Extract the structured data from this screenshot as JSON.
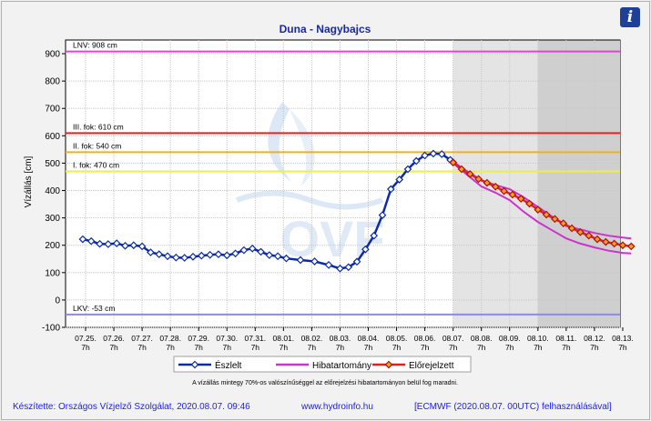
{
  "header": {
    "info_icon": "info-icon",
    "info_glyph": "i"
  },
  "chart_data": {
    "type": "line",
    "title": "Duna - Nagybajcs",
    "ylabel": "Vízállás [cm]",
    "xlabel": "",
    "ylim": [
      -100,
      950
    ],
    "yticks": [
      -100,
      0,
      100,
      200,
      300,
      400,
      500,
      600,
      700,
      800,
      900
    ],
    "grid": true,
    "legend_placement": "bottom",
    "x_ticks": [
      "07.25.",
      "07.26.",
      "07.27.",
      "07.28.",
      "07.29.",
      "07.30.",
      "07.31.",
      "08.01.",
      "08.02.",
      "08.03.",
      "08.04.",
      "08.05.",
      "08.06.",
      "08.07.",
      "08.08.",
      "08.09.",
      "08.10.",
      "08.11.",
      "08.12.",
      "08.13."
    ],
    "x_tick_sublabel": "7h",
    "reference_lines": [
      {
        "label": "LNV: 908 cm",
        "value": 908,
        "color": "#dd44dd"
      },
      {
        "label": "III. fok: 610 cm",
        "value": 610,
        "color": "#ee2222"
      },
      {
        "label": "II. fok: 540 cm",
        "value": 540,
        "color": "#f0b020"
      },
      {
        "label": "I. fok: 470 cm",
        "value": 470,
        "color": "#eeee44"
      },
      {
        "label": "LKV: -53 cm",
        "value": -53,
        "color": "#8888ff"
      }
    ],
    "shaded_regions": [
      {
        "from_day": 13,
        "to_day": 16,
        "color": "#e4e4e4"
      },
      {
        "from_day": 16,
        "to_day": 19.3,
        "color": "#cfcfcf"
      }
    ],
    "watermark": "OVF",
    "series": [
      {
        "name": "Észlelt",
        "color": "#0a2aa8",
        "points": [
          [
            -0.1,
            222
          ],
          [
            0.2,
            215
          ],
          [
            0.5,
            205
          ],
          [
            0.8,
            204
          ],
          [
            1.1,
            207
          ],
          [
            1.4,
            198
          ],
          [
            1.7,
            200
          ],
          [
            2.0,
            196
          ],
          [
            2.3,
            174
          ],
          [
            2.6,
            167
          ],
          [
            2.9,
            160
          ],
          [
            3.2,
            155
          ],
          [
            3.5,
            154
          ],
          [
            3.8,
            158
          ],
          [
            4.1,
            162
          ],
          [
            4.4,
            165
          ],
          [
            4.7,
            167
          ],
          [
            5.0,
            163
          ],
          [
            5.3,
            170
          ],
          [
            5.6,
            182
          ],
          [
            5.9,
            188
          ],
          [
            6.2,
            176
          ],
          [
            6.5,
            164
          ],
          [
            6.8,
            160
          ],
          [
            7.1,
            152
          ],
          [
            7.6,
            146
          ],
          [
            8.1,
            141
          ],
          [
            8.6,
            128
          ],
          [
            9.0,
            115
          ],
          [
            9.3,
            120
          ],
          [
            9.6,
            140
          ],
          [
            9.9,
            185
          ],
          [
            10.2,
            235
          ],
          [
            10.5,
            310
          ],
          [
            10.8,
            405
          ],
          [
            11.1,
            440
          ],
          [
            11.4,
            478
          ],
          [
            11.7,
            508
          ],
          [
            12.0,
            528
          ],
          [
            12.3,
            535
          ],
          [
            12.6,
            533
          ],
          [
            12.9,
            512
          ],
          [
            13.0,
            503
          ]
        ]
      },
      {
        "name": "Hibatartomány",
        "color": "#cc33cc",
        "upper": [
          [
            13.0,
            505
          ],
          [
            13.5,
            470
          ],
          [
            14.0,
            438
          ],
          [
            14.5,
            420
          ],
          [
            15.0,
            405
          ],
          [
            15.5,
            375
          ],
          [
            16.0,
            340
          ],
          [
            16.5,
            305
          ],
          [
            17.0,
            270
          ],
          [
            17.5,
            258
          ],
          [
            18.0,
            245
          ],
          [
            18.5,
            235
          ],
          [
            19.0,
            228
          ],
          [
            19.3,
            225
          ]
        ],
        "lower": [
          [
            13.0,
            500
          ],
          [
            13.5,
            457
          ],
          [
            14.0,
            415
          ],
          [
            14.5,
            392
          ],
          [
            15.0,
            365
          ],
          [
            15.5,
            322
          ],
          [
            16.0,
            285
          ],
          [
            16.5,
            255
          ],
          [
            17.0,
            225
          ],
          [
            17.5,
            206
          ],
          [
            18.0,
            192
          ],
          [
            18.5,
            180
          ],
          [
            19.0,
            172
          ],
          [
            19.3,
            170
          ]
        ]
      },
      {
        "name": "Előrejelzett",
        "color": "#e02020",
        "points": [
          [
            13.0,
            502
          ],
          [
            13.3,
            478
          ],
          [
            13.6,
            460
          ],
          [
            13.9,
            442
          ],
          [
            14.2,
            428
          ],
          [
            14.5,
            414
          ],
          [
            14.8,
            398
          ],
          [
            15.1,
            385
          ],
          [
            15.4,
            370
          ],
          [
            15.7,
            352
          ],
          [
            16.0,
            330
          ],
          [
            16.3,
            312
          ],
          [
            16.6,
            296
          ],
          [
            16.9,
            280
          ],
          [
            17.2,
            262
          ],
          [
            17.5,
            248
          ],
          [
            17.8,
            235
          ],
          [
            18.1,
            222
          ],
          [
            18.4,
            212
          ],
          [
            18.7,
            206
          ],
          [
            19.0,
            200
          ],
          [
            19.3,
            196
          ]
        ]
      }
    ],
    "note": "A vízállás mintegy 70%-os valószínűséggel az előrejelzési hibatartományon belül fog maradni."
  },
  "footer": {
    "author": "Készítette: Országos Vízjelző Szolgálat, 2020.08.07. 09:46",
    "website": "www.hydroinfo.hu",
    "model": "[ECMWF (2020.08.07. 00UTC) felhasználásával]"
  }
}
